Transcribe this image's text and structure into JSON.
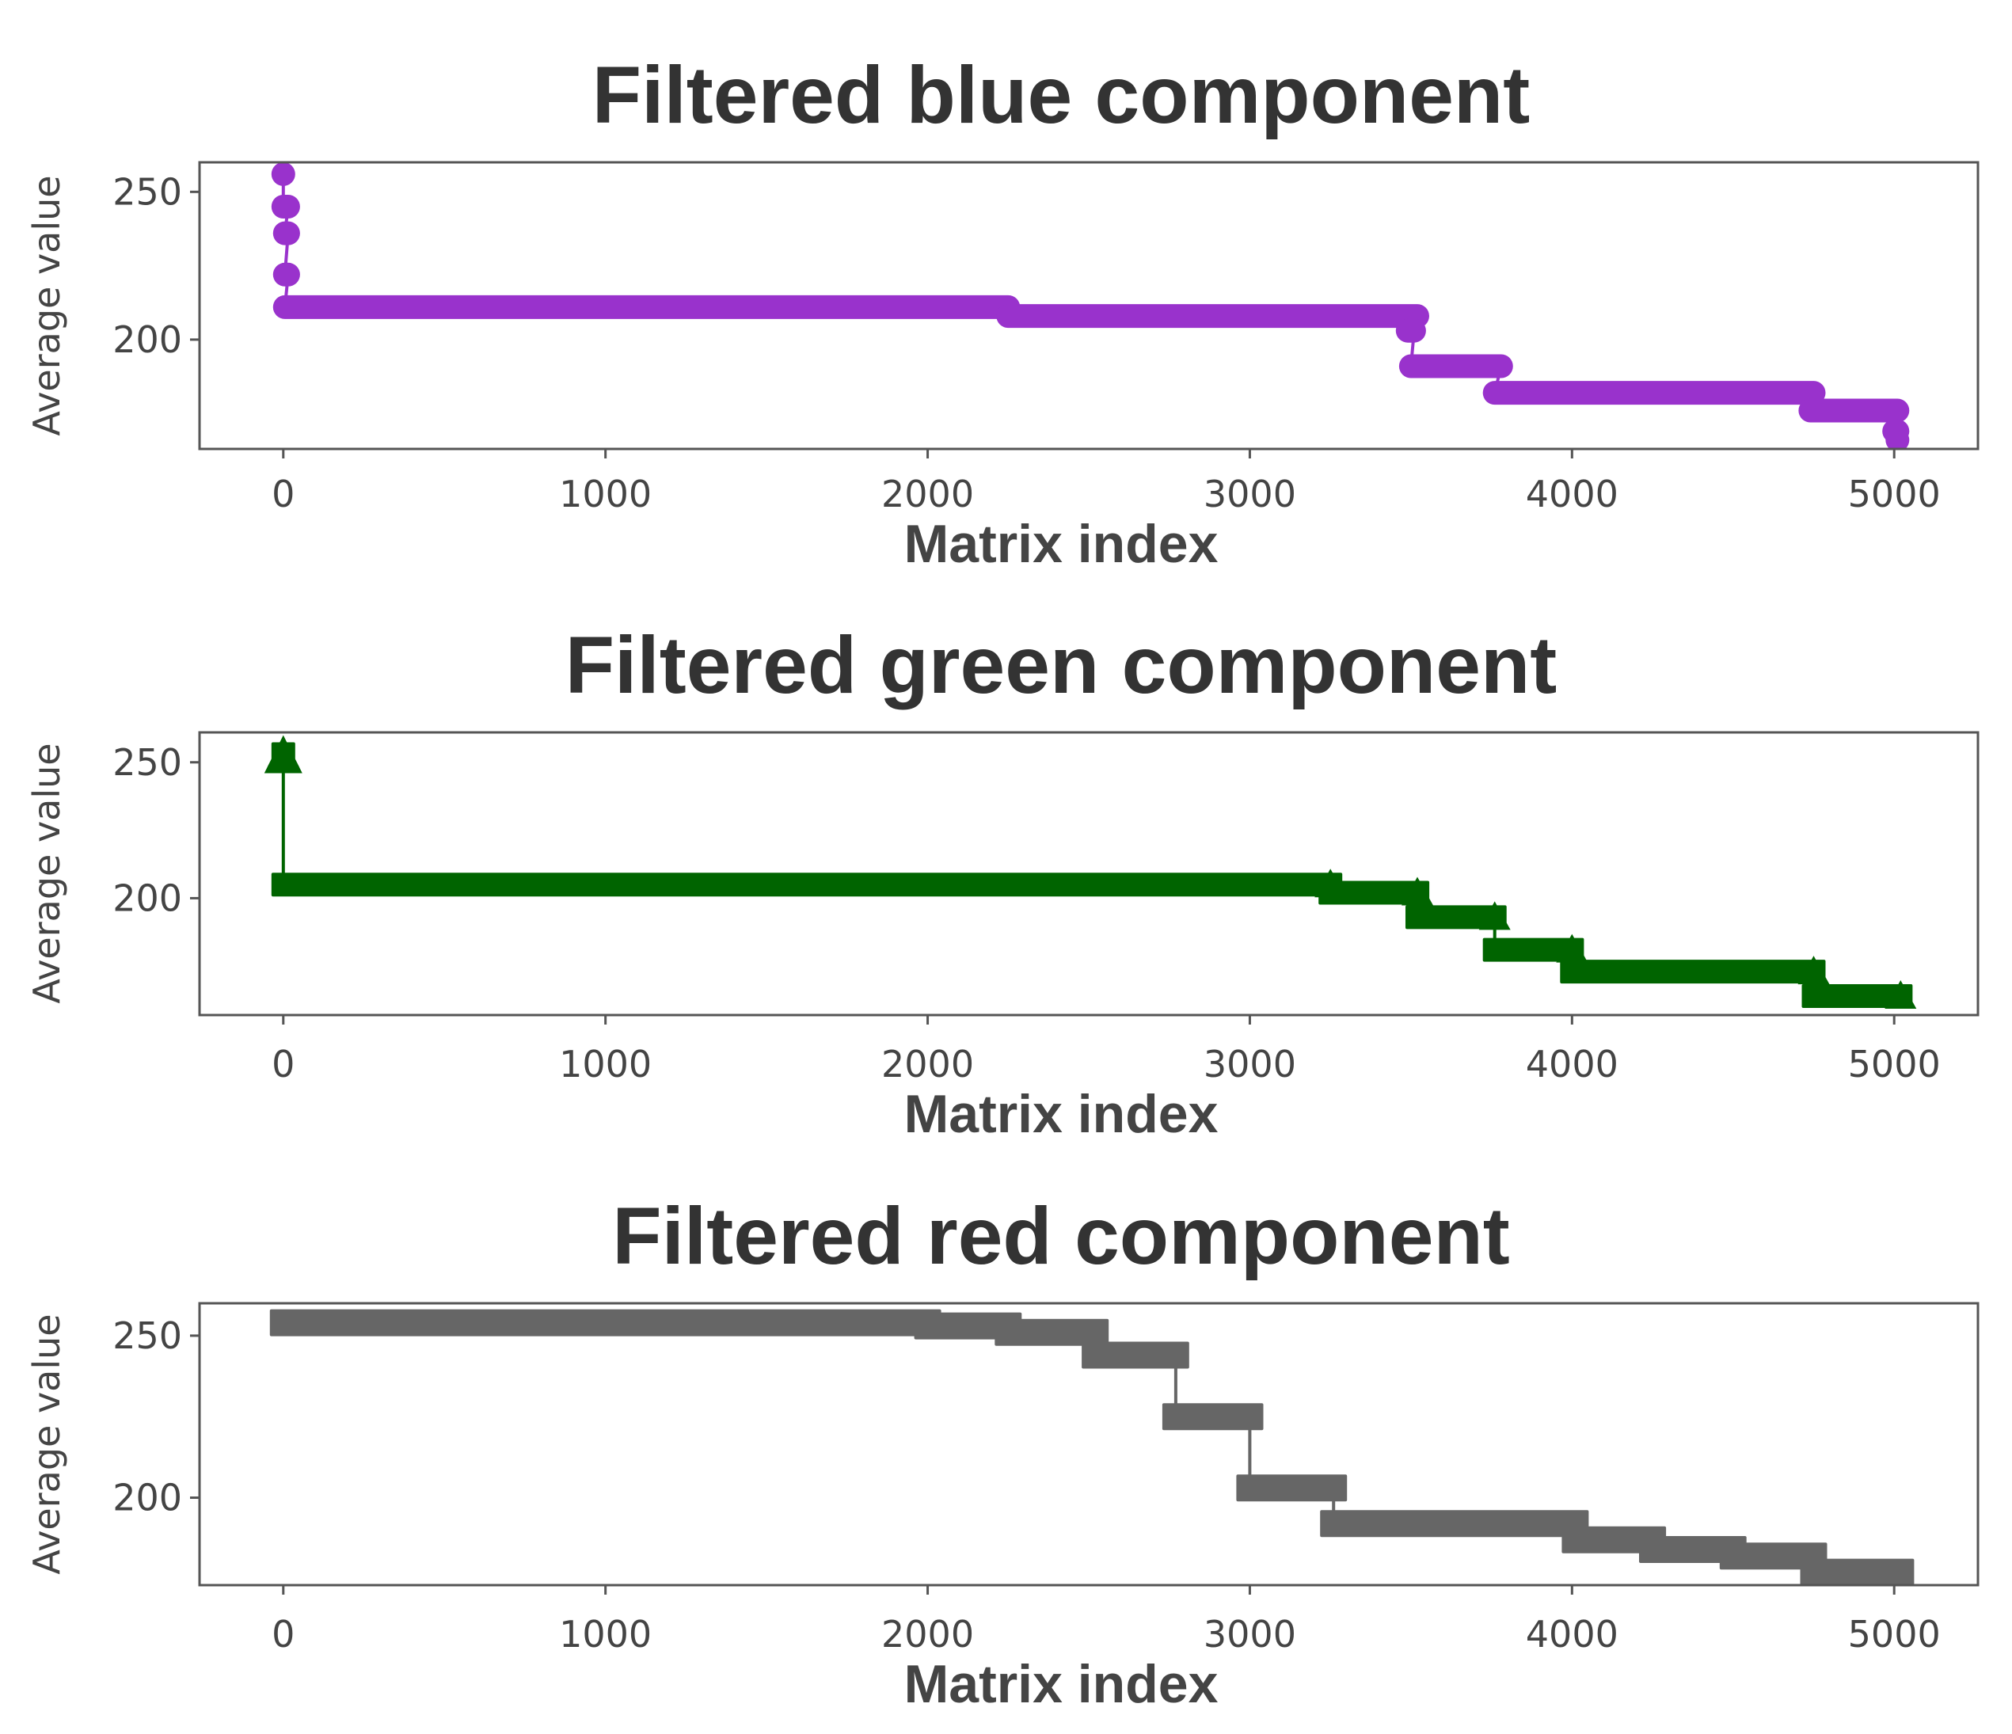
{
  "chart_data": [
    {
      "type": "line",
      "title": "Filtered blue component",
      "xlabel": "Matrix index",
      "ylabel": "Average value",
      "xlim": [
        -260,
        5260
      ],
      "ylim": [
        163,
        260
      ],
      "xticks": [
        0,
        1000,
        2000,
        3000,
        4000,
        5000
      ],
      "xtick_labels": [
        "0",
        "1000",
        "2000",
        "3000",
        "4000",
        "5000"
      ],
      "yticks": [
        200,
        250
      ],
      "ytick_labels": [
        "200",
        "250"
      ],
      "marker": "circle",
      "color": "#9932CC",
      "steps": [
        {
          "x0": 0,
          "x1": 0,
          "y": 256
        },
        {
          "x0": 0,
          "x1": 15,
          "y": 245
        },
        {
          "x0": 5,
          "x1": 15,
          "y": 236
        },
        {
          "x0": 5,
          "x1": 15,
          "y": 222
        },
        {
          "x0": 5,
          "x1": 2250,
          "y": 211
        },
        {
          "x0": 2250,
          "x1": 3520,
          "y": 208
        },
        {
          "x0": 3490,
          "x1": 3510,
          "y": 203
        },
        {
          "x0": 3500,
          "x1": 3780,
          "y": 191
        },
        {
          "x0": 3760,
          "x1": 4750,
          "y": 182
        },
        {
          "x0": 4740,
          "x1": 5010,
          "y": 176
        },
        {
          "x0": 5000,
          "x1": 5010,
          "y": 169
        },
        {
          "x0": 5010,
          "x1": 5010,
          "y": 166
        }
      ]
    },
    {
      "type": "line",
      "title": "Filtered green component",
      "xlabel": "Matrix index",
      "ylabel": "Average value",
      "xlim": [
        -260,
        5260
      ],
      "ylim": [
        157,
        261
      ],
      "xticks": [
        0,
        1000,
        2000,
        3000,
        4000,
        5000
      ],
      "xtick_labels": [
        "0",
        "1000",
        "2000",
        "3000",
        "4000",
        "5000"
      ],
      "yticks": [
        200,
        250
      ],
      "ytick_labels": [
        "200",
        "250"
      ],
      "marker": "triangle",
      "color": "#006400",
      "steps": [
        {
          "x0": 0,
          "x1": 0,
          "y": 253
        },
        {
          "x0": 0,
          "x1": 3250,
          "y": 205
        },
        {
          "x0": 3250,
          "x1": 3520,
          "y": 202
        },
        {
          "x0": 3520,
          "x1": 3760,
          "y": 193
        },
        {
          "x0": 3760,
          "x1": 4000,
          "y": 181
        },
        {
          "x0": 4000,
          "x1": 4750,
          "y": 173
        },
        {
          "x0": 4750,
          "x1": 5020,
          "y": 164
        }
      ]
    },
    {
      "type": "line",
      "title": "Filtered red component",
      "xlabel": "Matrix index",
      "ylabel": "Average value",
      "xlim": [
        -260,
        5260
      ],
      "ylim": [
        173,
        260
      ],
      "xticks": [
        0,
        1000,
        2000,
        3000,
        4000,
        5000
      ],
      "xtick_labels": [
        "0",
        "1000",
        "2000",
        "3000",
        "4000",
        "5000"
      ],
      "yticks": [
        200,
        250
      ],
      "ytick_labels": [
        "200",
        "250"
      ],
      "marker": "square",
      "color": "#666666",
      "steps": [
        {
          "x0": 0,
          "x1": 2000,
          "y": 254
        },
        {
          "x0": 2000,
          "x1": 2250,
          "y": 253
        },
        {
          "x0": 2250,
          "x1": 2520,
          "y": 251
        },
        {
          "x0": 2520,
          "x1": 2770,
          "y": 244
        },
        {
          "x0": 2770,
          "x1": 3000,
          "y": 225
        },
        {
          "x0": 3000,
          "x1": 3260,
          "y": 203
        },
        {
          "x0": 3260,
          "x1": 4010,
          "y": 192
        },
        {
          "x0": 4010,
          "x1": 4250,
          "y": 187
        },
        {
          "x0": 4250,
          "x1": 4500,
          "y": 184
        },
        {
          "x0": 4500,
          "x1": 4750,
          "y": 182
        },
        {
          "x0": 4750,
          "x1": 5020,
          "y": 177
        }
      ]
    }
  ]
}
